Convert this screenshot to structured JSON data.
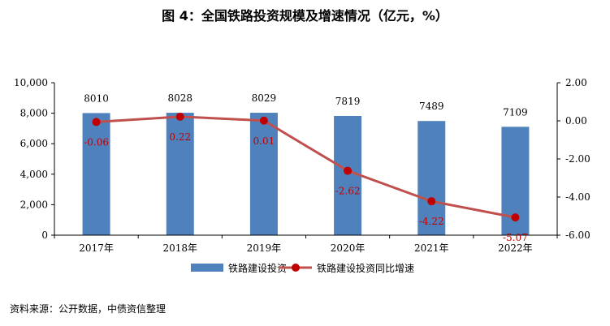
{
  "title": "图 4：全国铁路投资规模及增速情况（亿元，%）",
  "source": "资料来源：公开数据，中债资信整理",
  "colors": {
    "bar": "#4F81BD",
    "line": "#C0504D",
    "line_label": "#C00000"
  },
  "chart_data": {
    "type": "bar",
    "categories": [
      "2017年",
      "2018年",
      "2019年",
      "2020年",
      "2021年",
      "2022年"
    ],
    "series": [
      {
        "name": "铁路建设投资",
        "type": "bar",
        "axis": "left",
        "values": [
          8010,
          8028,
          8029,
          7819,
          7489,
          7109
        ],
        "labels": [
          "8010",
          "8028",
          "8029",
          "7819",
          "7489",
          "7109"
        ]
      },
      {
        "name": "铁路建设投资同比增速",
        "type": "line",
        "axis": "right",
        "values": [
          -0.06,
          0.22,
          0.01,
          -2.62,
          -4.22,
          -5.07
        ],
        "labels": [
          "-0.06",
          "0.22",
          "0.01",
          "-2.62",
          "-4.22",
          "-5.07"
        ]
      }
    ],
    "y_left": {
      "min": 0,
      "max": 10000,
      "ticks": [
        0,
        2000,
        4000,
        6000,
        8000,
        10000
      ],
      "tick_labels": [
        "0",
        "2,000",
        "4,000",
        "6,000",
        "8,000",
        "10,000"
      ]
    },
    "y_right": {
      "min": -6,
      "max": 2,
      "ticks": [
        2,
        0,
        -2,
        -4,
        -6
      ],
      "tick_labels": [
        "2.00",
        "0.00",
        "-2.00",
        "-4.00",
        "-6.00"
      ]
    },
    "grid": false,
    "legend": "bottom"
  }
}
